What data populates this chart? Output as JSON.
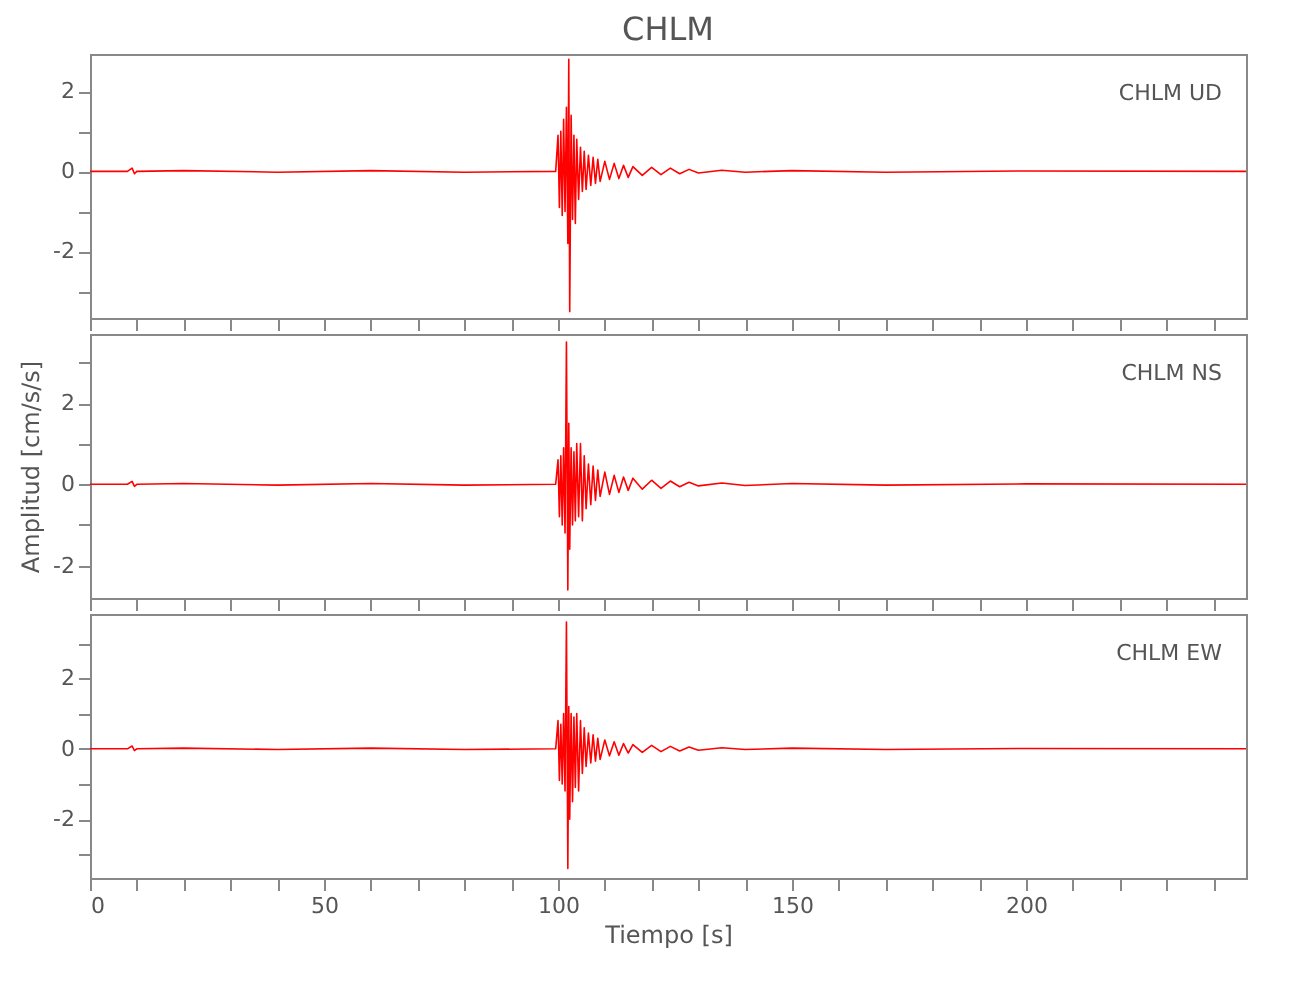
{
  "chart_data": [
    {
      "type": "line",
      "title": "CHLM",
      "annotations": [
        "CHLM   UD"
      ],
      "tick_labels": "y",
      "grid": false,
      "line_style": "solid",
      "marker": "none",
      "x": [
        0,
        8,
        9,
        9.5,
        10,
        20,
        40,
        60,
        80,
        99.5,
        100,
        100.3,
        100.6,
        100.9,
        101.2,
        101.5,
        101.8,
        102.1,
        102.3,
        102.5,
        102.8,
        103.1,
        103.4,
        103.7,
        104,
        104.4,
        104.8,
        105.2,
        105.6,
        106,
        106.5,
        107,
        107.5,
        108,
        108.5,
        109,
        110,
        111,
        112,
        113,
        114,
        115,
        116,
        118,
        120,
        122,
        124,
        126,
        128,
        130,
        135,
        140,
        150,
        170,
        200,
        247
      ],
      "series": [
        {
          "color": "#ff0000",
          "values": [
            0,
            0,
            0.08,
            -0.06,
            0,
            0.02,
            -0.02,
            0.02,
            -0.02,
            0,
            0.9,
            -0.9,
            1.0,
            -1.1,
            1.3,
            -1.0,
            1.6,
            -1.8,
            2.8,
            -3.5,
            1.4,
            -1.2,
            0.9,
            -1.3,
            0.8,
            -0.7,
            0.6,
            -0.5,
            0.5,
            -0.45,
            0.4,
            -0.35,
            0.35,
            -0.3,
            0.3,
            -0.25,
            0.25,
            -0.2,
            0.2,
            -0.18,
            0.15,
            -0.15,
            0.12,
            -0.1,
            0.1,
            -0.08,
            0.08,
            -0.06,
            0.05,
            -0.04,
            0.03,
            -0.02,
            0.02,
            -0.02,
            0.01,
            0
          ]
        }
      ],
      "xlim": [
        0,
        247
      ],
      "xticks": [
        0,
        {
          "value": 10,
          "label": null
        },
        {
          "value": 20,
          "label": null
        },
        {
          "value": 30,
          "label": null
        },
        {
          "value": 40,
          "label": null
        },
        50,
        {
          "value": 60,
          "label": null
        },
        {
          "value": 70,
          "label": null
        },
        {
          "value": 80,
          "label": null
        },
        {
          "value": 90,
          "label": null
        },
        100,
        {
          "value": 110,
          "label": null
        },
        {
          "value": 120,
          "label": null
        },
        {
          "value": 130,
          "label": null
        },
        {
          "value": 140,
          "label": null
        },
        150,
        {
          "value": 160,
          "label": null
        },
        {
          "value": 170,
          "label": null
        },
        {
          "value": 180,
          "label": null
        },
        {
          "value": 190,
          "label": null
        },
        200,
        {
          "value": 210,
          "label": null
        },
        {
          "value": 220,
          "label": null
        },
        {
          "value": 230,
          "label": null
        },
        {
          "value": 240,
          "label": null
        }
      ],
      "ylim": [
        -3.66,
        2.93
      ],
      "yticks": [
        {
          "value": -3,
          "label": null
        },
        -2,
        {
          "value": -1,
          "label": null
        },
        0,
        {
          "value": 1,
          "label": null
        },
        2
      ]
    },
    {
      "type": "line",
      "ylabel": "Amplitud [cm/s/s]",
      "annotations": [
        "CHLM   NS"
      ],
      "tick_labels": "y",
      "grid": false,
      "line_style": "solid",
      "marker": "none",
      "x": [
        0,
        8,
        9,
        9.5,
        10,
        20,
        40,
        60,
        80,
        99.5,
        100,
        100.3,
        100.6,
        100.9,
        101.2,
        101.5,
        101.8,
        102.1,
        102.3,
        102.5,
        102.8,
        103.1,
        103.4,
        103.7,
        104,
        104.4,
        104.8,
        105.2,
        105.6,
        106,
        106.5,
        107,
        107.5,
        108,
        108.5,
        109,
        110,
        111,
        112,
        113,
        114,
        115,
        116,
        118,
        120,
        122,
        124,
        126,
        128,
        130,
        135,
        140,
        150,
        170,
        200,
        247
      ],
      "series": [
        {
          "color": "#ff0000",
          "values": [
            0,
            0,
            0.07,
            -0.05,
            0,
            0.02,
            -0.02,
            0.02,
            -0.02,
            0,
            0.6,
            -0.8,
            0.7,
            -1.0,
            0.9,
            -1.2,
            3.5,
            -2.6,
            1.5,
            -1.6,
            0.9,
            -1.0,
            0.8,
            -0.9,
            1.0,
            -0.8,
            1.0,
            -0.9,
            0.7,
            -0.6,
            0.5,
            -0.5,
            0.45,
            -0.4,
            0.35,
            -0.3,
            0.3,
            -0.25,
            0.22,
            -0.2,
            0.18,
            -0.15,
            0.15,
            -0.12,
            0.1,
            -0.1,
            0.08,
            -0.06,
            0.05,
            -0.04,
            0.03,
            -0.03,
            0.02,
            -0.02,
            0.01,
            0
          ]
        }
      ],
      "xlim": [
        0,
        247
      ],
      "xticks": [
        0,
        {
          "value": 10,
          "label": null
        },
        {
          "value": 20,
          "label": null
        },
        {
          "value": 30,
          "label": null
        },
        {
          "value": 40,
          "label": null
        },
        50,
        {
          "value": 60,
          "label": null
        },
        {
          "value": 70,
          "label": null
        },
        {
          "value": 80,
          "label": null
        },
        {
          "value": 90,
          "label": null
        },
        100,
        {
          "value": 110,
          "label": null
        },
        {
          "value": 120,
          "label": null
        },
        {
          "value": 130,
          "label": null
        },
        {
          "value": 140,
          "label": null
        },
        150,
        {
          "value": 160,
          "label": null
        },
        {
          "value": 170,
          "label": null
        },
        {
          "value": 180,
          "label": null
        },
        {
          "value": 190,
          "label": null
        },
        200,
        {
          "value": 210,
          "label": null
        },
        {
          "value": 220,
          "label": null
        },
        {
          "value": 230,
          "label": null
        },
        {
          "value": 240,
          "label": null
        }
      ],
      "ylim": [
        -2.8,
        3.7
      ],
      "yticks": [
        -2,
        {
          "value": -1,
          "label": null
        },
        0,
        {
          "value": 1,
          "label": null
        },
        2,
        {
          "value": 3,
          "label": null
        }
      ]
    },
    {
      "type": "line",
      "xlabel": "Tiempo [s]",
      "annotations": [
        "CHLM   EW"
      ],
      "grid": false,
      "line_style": "solid",
      "marker": "none",
      "x": [
        0,
        8,
        9,
        9.5,
        10,
        20,
        40,
        60,
        80,
        99.5,
        100,
        100.3,
        100.6,
        100.9,
        101.2,
        101.5,
        101.8,
        102.1,
        102.3,
        102.5,
        102.8,
        103.1,
        103.4,
        103.7,
        104,
        104.4,
        104.8,
        105.2,
        105.6,
        106,
        106.5,
        107,
        107.5,
        108,
        108.5,
        109,
        110,
        111,
        112,
        113,
        114,
        115,
        116,
        118,
        120,
        122,
        124,
        126,
        128,
        130,
        135,
        140,
        150,
        170,
        200,
        247
      ],
      "series": [
        {
          "color": "#ff0000",
          "values": [
            0,
            0,
            0.08,
            -0.05,
            0,
            0.02,
            -0.02,
            0.02,
            -0.02,
            0,
            0.8,
            -0.9,
            0.7,
            -1.0,
            1.0,
            -1.2,
            3.6,
            -3.4,
            1.2,
            -2.0,
            1.0,
            -1.5,
            0.9,
            -1.1,
            1.0,
            -1.2,
            0.8,
            -0.7,
            0.6,
            -0.5,
            0.45,
            -0.4,
            0.4,
            -0.35,
            0.3,
            -0.3,
            0.25,
            -0.2,
            0.2,
            -0.18,
            0.15,
            -0.12,
            0.12,
            -0.1,
            0.1,
            -0.08,
            0.07,
            -0.06,
            0.05,
            -0.04,
            0.03,
            -0.02,
            0.02,
            -0.02,
            0.01,
            0
          ]
        }
      ],
      "xlim": [
        0,
        247
      ],
      "xticks": [
        0,
        {
          "value": 10,
          "label": null
        },
        {
          "value": 20,
          "label": null
        },
        {
          "value": 30,
          "label": null
        },
        {
          "value": 40,
          "label": null
        },
        50,
        {
          "value": 60,
          "label": null
        },
        {
          "value": 70,
          "label": null
        },
        {
          "value": 80,
          "label": null
        },
        {
          "value": 90,
          "label": null
        },
        100,
        {
          "value": 110,
          "label": null
        },
        {
          "value": 120,
          "label": null
        },
        {
          "value": 130,
          "label": null
        },
        {
          "value": 140,
          "label": null
        },
        150,
        {
          "value": 160,
          "label": null
        },
        {
          "value": 170,
          "label": null
        },
        {
          "value": 180,
          "label": null
        },
        {
          "value": 190,
          "label": null
        },
        200,
        {
          "value": 210,
          "label": null
        },
        {
          "value": 220,
          "label": null
        },
        {
          "value": 230,
          "label": null
        },
        {
          "value": 240,
          "label": null
        }
      ],
      "ylim": [
        -3.67,
        3.83
      ],
      "yticks": [
        {
          "value": -3,
          "label": null
        },
        -2,
        {
          "value": -1,
          "label": null
        },
        0,
        {
          "value": 1,
          "label": null
        },
        2,
        {
          "value": 3,
          "label": null
        }
      ]
    }
  ]
}
